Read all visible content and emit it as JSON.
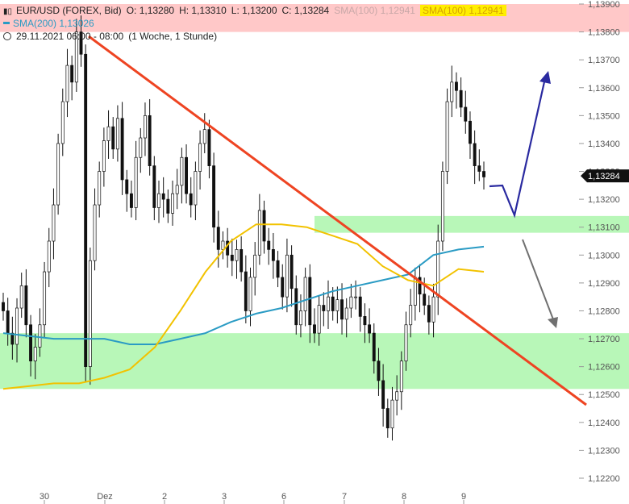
{
  "header": {
    "symbol_icon": "candlestick-icon",
    "instrument": "EUR/USD (FOREX, Bid)",
    "open": "O: 1,13280",
    "high": "H: 1,13310",
    "low": "L: 1,13200",
    "close": "C: 1,13284",
    "sma100_grey": "SMA(100)  1,12941",
    "sma100_yellow": "SMA(100)  1,12941",
    "sma200": "SMA(200)  1,13026",
    "date_range": "29.11.2021 06:00 - 08:00",
    "interval": "(1 Woche, 1 Stunde)",
    "clock_icon": "clock-icon"
  },
  "chart_data": {
    "type": "candlestick",
    "y_axis_labels": [
      "1,13900",
      "1,13800",
      "1,13700",
      "1,13600",
      "1,13500",
      "1,13400",
      "1,13300",
      "1,13200",
      "1,13100",
      "1,13000",
      "1,12900",
      "1,12800",
      "1,12700",
      "1,12600",
      "1,12500",
      "1,12400",
      "1,12300",
      "1,12200"
    ],
    "ylim": [
      1.122,
      1.139
    ],
    "x_ticks": [
      "30",
      "Dez",
      "2",
      "3",
      "6",
      "7",
      "8",
      "9"
    ],
    "last_price_label": "1,13284",
    "last_price": 1.13284,
    "closes": [
      1.128,
      1.1272,
      1.1268,
      1.1281,
      1.1289,
      1.1275,
      1.1262,
      1.1267,
      1.1275,
      1.1294,
      1.1305,
      1.1318,
      1.134,
      1.1355,
      1.1368,
      1.1362,
      1.138,
      1.1372,
      1.126,
      1.1298,
      1.1318,
      1.133,
      1.1341,
      1.1346,
      1.1338,
      1.1349,
      1.1327,
      1.1322,
      1.1317,
      1.1335,
      1.1342,
      1.135,
      1.1332,
      1.1317,
      1.1322,
      1.132,
      1.1315,
      1.1322,
      1.1325,
      1.1335,
      1.1322,
      1.1318,
      1.133,
      1.134,
      1.1345,
      1.1332,
      1.131,
      1.1302,
      1.1305,
      1.13,
      1.1298,
      1.1302,
      1.1294,
      1.128,
      1.1292,
      1.13,
      1.1316,
      1.1305,
      1.1302,
      1.1298,
      1.1292,
      1.1285,
      1.13,
      1.1288,
      1.1275,
      1.128,
      1.1292,
      1.1275,
      1.1272,
      1.1282,
      1.128,
      1.1285,
      1.128,
      1.1284,
      1.1277,
      1.1281,
      1.1285,
      1.1285,
      1.1278,
      1.1275,
      1.1272,
      1.1262,
      1.1255,
      1.1245,
      1.1238,
      1.1248,
      1.1251,
      1.1262,
      1.1275,
      1.1282,
      1.1292,
      1.1286,
      1.1282,
      1.1276,
      1.1285,
      1.1305,
      1.133,
      1.1355,
      1.1362,
      1.1359,
      1.1353,
      1.1348,
      1.134,
      1.1332,
      1.133,
      1.1328
    ],
    "sma100_yellow": [
      1.1252,
      1.1253,
      1.1254,
      1.1254,
      1.1256,
      1.1259,
      1.1267,
      1.128,
      1.1294,
      1.1305,
      1.1311,
      1.1311,
      1.131,
      1.1307,
      1.1304,
      1.1296,
      1.1291,
      1.1289,
      1.1295,
      1.1294
    ],
    "sma200_teal": [
      1.1272,
      1.1271,
      1.127,
      1.127,
      1.127,
      1.1268,
      1.1268,
      1.127,
      1.1272,
      1.1276,
      1.1279,
      1.1281,
      1.1284,
      1.1287,
      1.1289,
      1.1291,
      1.1293,
      1.13,
      1.1302,
      1.1303
    ],
    "resistance_trendline": {
      "color": "#ee4422",
      "from": [
        "29.11",
        1.138
      ],
      "to": [
        "10.12",
        1.1247
      ]
    },
    "support_zones": [
      {
        "from": 1.1308,
        "to": 1.1314,
        "color": "#b8f7b8"
      },
      {
        "from": 1.1252,
        "to": 1.1272,
        "color": "#b8f7b8"
      }
    ],
    "resistance_zone": {
      "from": 1.138,
      "to": 1.139,
      "color": "#ffc8c8"
    },
    "forecast_up": {
      "color": "#2a2aa0",
      "to_price": 1.1365
    },
    "forecast_down": {
      "color": "#707070",
      "to_price": 1.1273
    }
  }
}
